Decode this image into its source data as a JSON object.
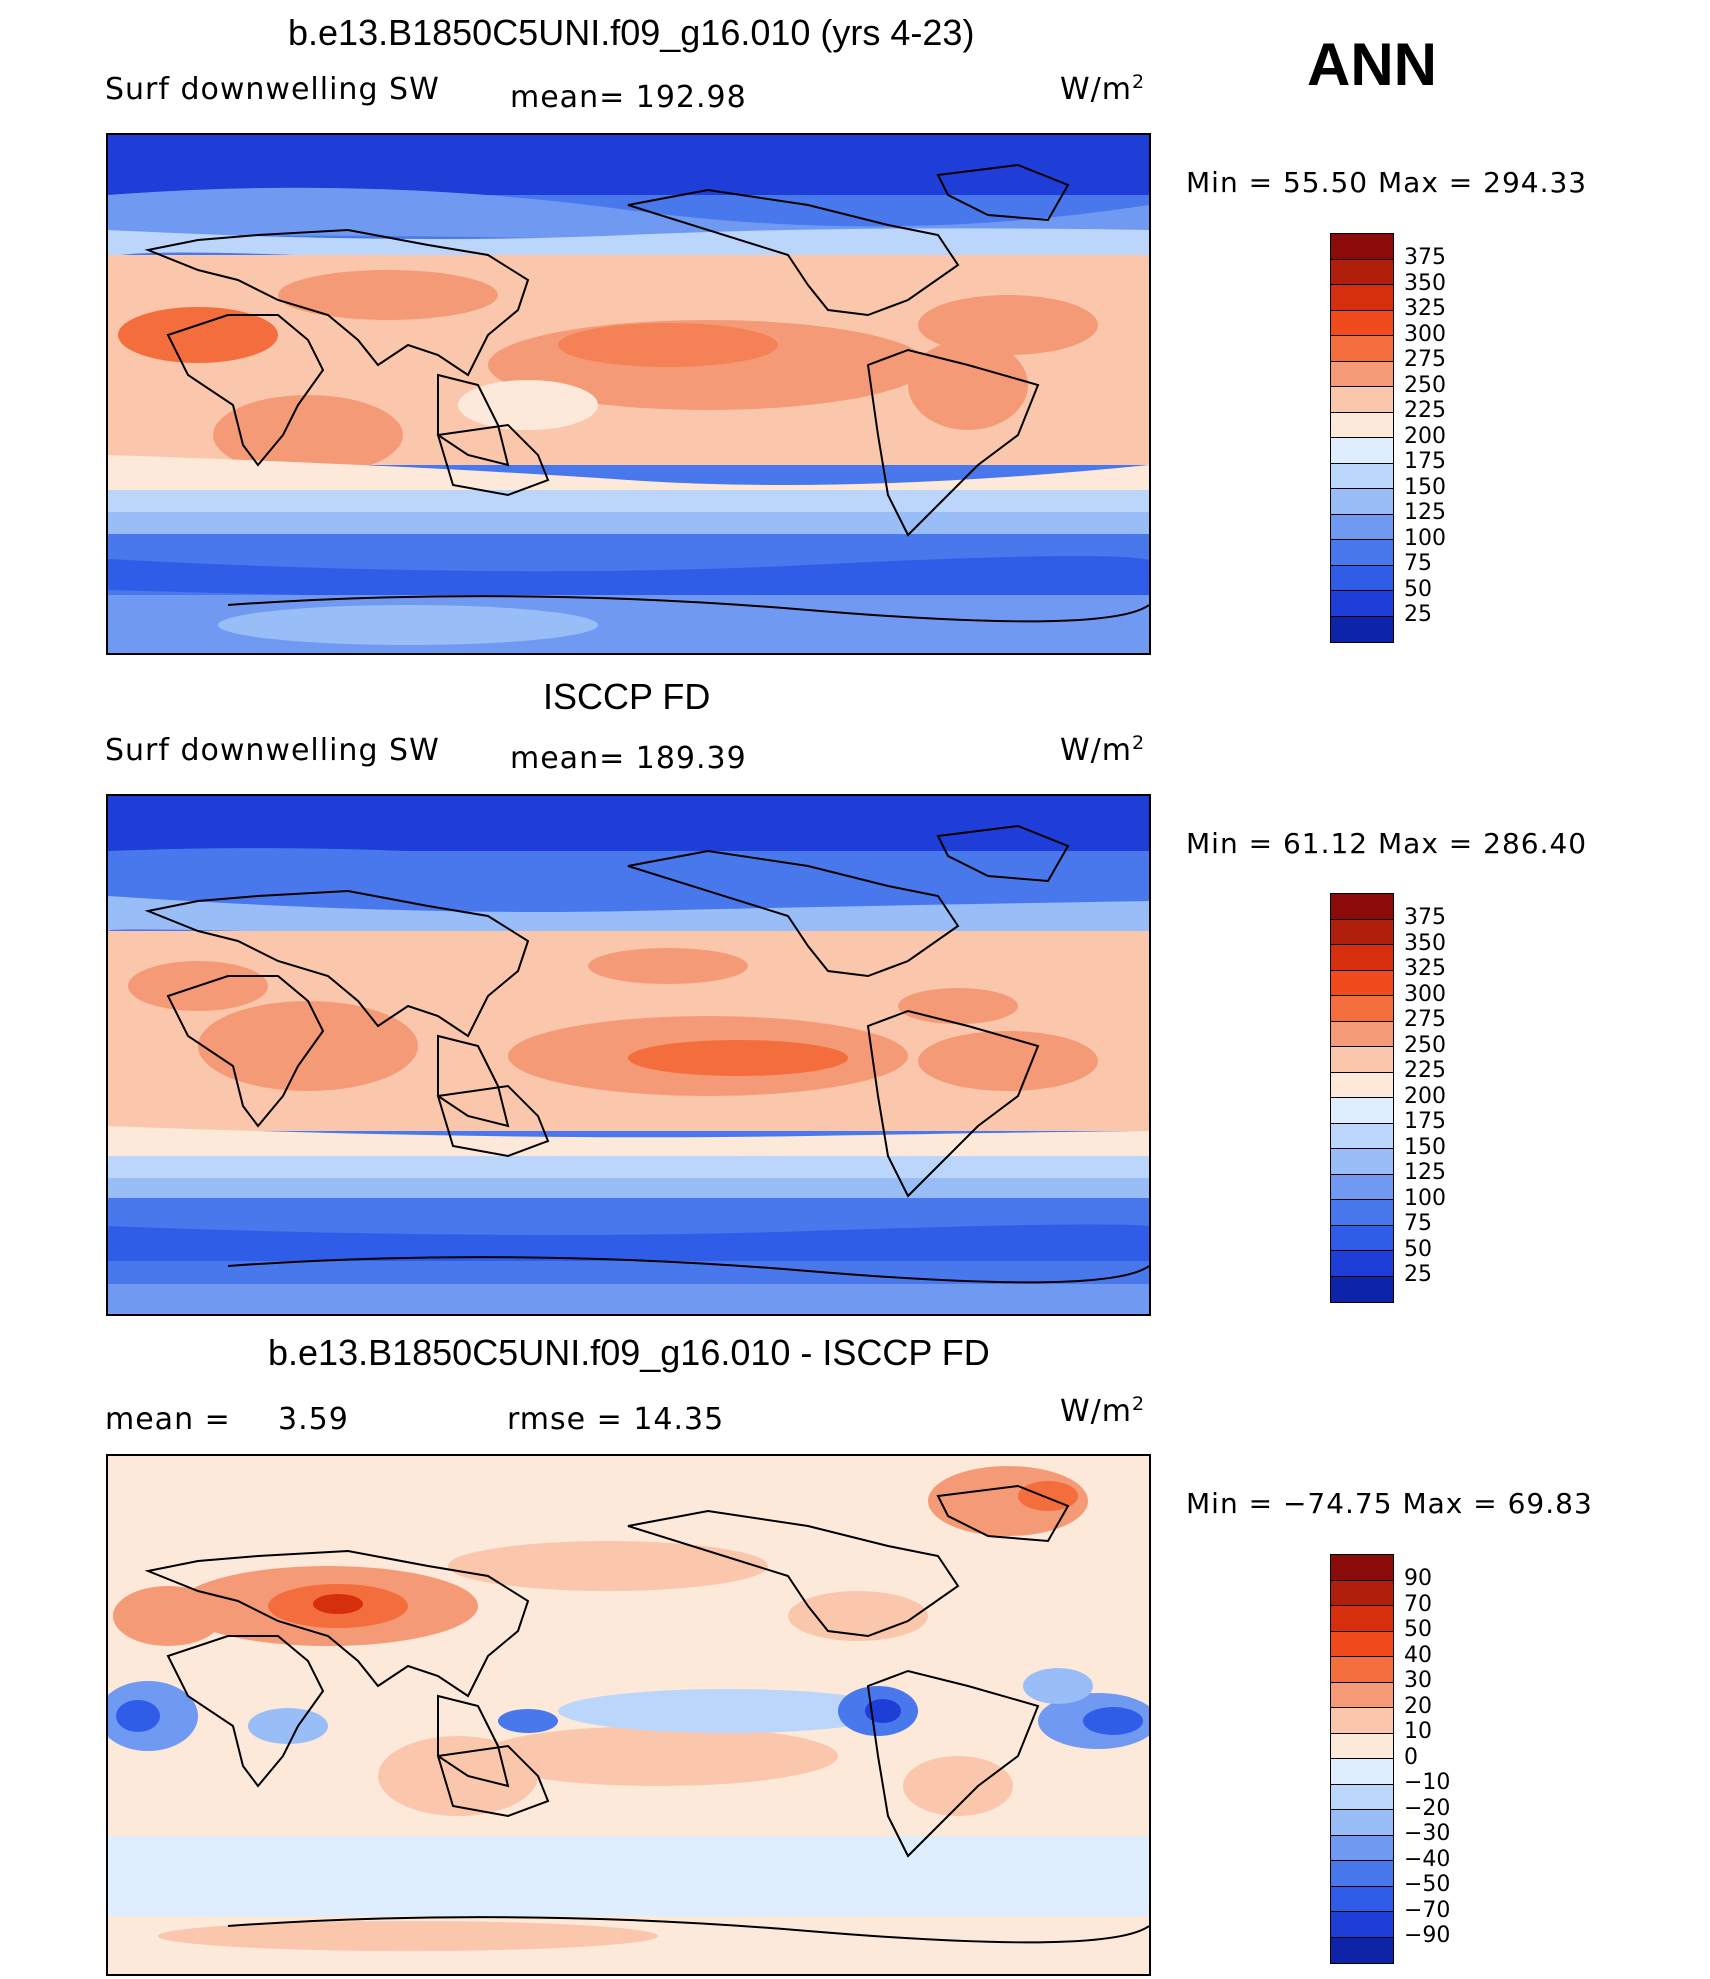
{
  "season": "ANN",
  "panels": [
    {
      "title": "b.e13.B1850C5UNI.f09_g16.010 (yrs 4-23)",
      "variable": "Surf  downwelling SW",
      "stat1": "mean=  192.98",
      "stat2": "",
      "unit_base": "W/m",
      "unit_exp": "2",
      "minmax": "Min  =    55.50  Max  =  294.33",
      "colorbar_labels": [
        "375",
        "350",
        "325",
        "300",
        "275",
        "250",
        "225",
        "200",
        "175",
        "150",
        "125",
        "100",
        "75",
        "50",
        "25"
      ],
      "colorbar_colors": [
        "#8b0a0a",
        "#b01e0c",
        "#d62f0e",
        "#f04a1d",
        "#f46d3d",
        "#f59a76",
        "#fac7ad",
        "#fde9da",
        "#dfeefe",
        "#bcd6fb",
        "#98bdf7",
        "#7099f2",
        "#4978ed",
        "#2f5de8",
        "#1e3ed7",
        "#0d24a8"
      ]
    },
    {
      "title": "ISCCP FD",
      "variable": "Surf  downwelling SW",
      "stat1": "mean=  189.39",
      "stat2": "",
      "unit_base": "W/m",
      "unit_exp": "2",
      "minmax": "Min  =    61.12  Max  =  286.40",
      "colorbar_labels": [
        "375",
        "350",
        "325",
        "300",
        "275",
        "250",
        "225",
        "200",
        "175",
        "150",
        "125",
        "100",
        "75",
        "50",
        "25"
      ],
      "colorbar_colors": [
        "#8b0a0a",
        "#b01e0c",
        "#d62f0e",
        "#f04a1d",
        "#f46d3d",
        "#f59a76",
        "#fac7ad",
        "#fde9da",
        "#dfeefe",
        "#bcd6fb",
        "#98bdf7",
        "#7099f2",
        "#4978ed",
        "#2f5de8",
        "#1e3ed7",
        "#0d24a8"
      ]
    },
    {
      "title": "b.e13.B1850C5UNI.f09_g16.010 - ISCCP FD",
      "variable": "mean  =",
      "stat1": "3.59",
      "stat2": "rmse  =    14.35",
      "unit_base": "W/m",
      "unit_exp": "2",
      "minmax": "Min  = −74.75  Max  =    69.83",
      "colorbar_labels": [
        "90",
        "70",
        "50",
        "40",
        "30",
        "20",
        "10",
        "0",
        "−10",
        "−20",
        "−30",
        "−40",
        "−50",
        "−70",
        "−90"
      ],
      "colorbar_colors": [
        "#8b0a0a",
        "#b01e0c",
        "#d62f0e",
        "#f04a1d",
        "#f46d3d",
        "#f59a76",
        "#fac7ad",
        "#fde9da",
        "#dfeefe",
        "#bcd6fb",
        "#98bdf7",
        "#7099f2",
        "#4978ed",
        "#2f5de8",
        "#1e3ed7",
        "#0d24a8"
      ]
    }
  ]
}
